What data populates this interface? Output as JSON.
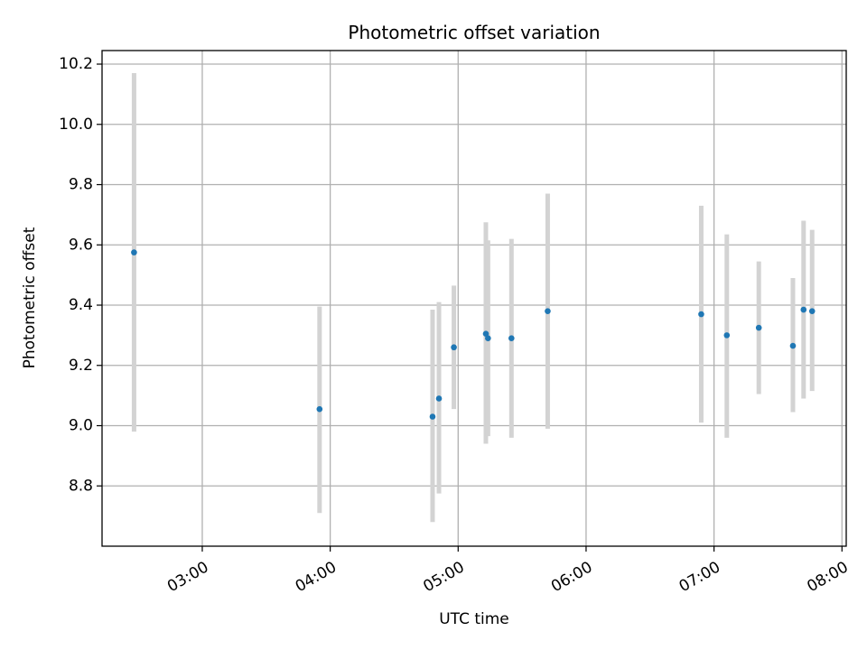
{
  "chart_data": {
    "type": "scatter",
    "title": "Photometric offset variation",
    "xlabel": "UTC time",
    "ylabel": "Photometric offset",
    "x_ticks": [
      "03:00",
      "04:00",
      "05:00",
      "06:00",
      "07:00",
      "08:00"
    ],
    "y_ticks": [
      "8.8",
      "9.0",
      "9.2",
      "9.4",
      "9.6",
      "9.8",
      "10.0",
      "10.2"
    ],
    "xlim": [
      "02:13",
      "08:02"
    ],
    "ylim": [
      8.6,
      10.245
    ],
    "grid": true,
    "colors": {
      "point": "#1f77b4",
      "errorbar": "#d3d3d3",
      "grid": "#b0b0b0"
    },
    "points": [
      {
        "time": "02:28",
        "y": 9.575,
        "y_low": 8.98,
        "y_high": 10.17
      },
      {
        "time": "03:55",
        "y": 9.055,
        "y_low": 8.71,
        "y_high": 9.395
      },
      {
        "time": "04:48",
        "y": 9.03,
        "y_low": 8.68,
        "y_high": 9.385
      },
      {
        "time": "04:51",
        "y": 9.09,
        "y_low": 8.775,
        "y_high": 9.41
      },
      {
        "time": "04:58",
        "y": 9.26,
        "y_low": 9.055,
        "y_high": 9.465
      },
      {
        "time": "05:13",
        "y": 9.305,
        "y_low": 8.94,
        "y_high": 9.675
      },
      {
        "time": "05:14",
        "y": 9.29,
        "y_low": 8.965,
        "y_high": 9.615
      },
      {
        "time": "05:25",
        "y": 9.29,
        "y_low": 8.96,
        "y_high": 9.62
      },
      {
        "time": "05:42",
        "y": 9.38,
        "y_low": 8.99,
        "y_high": 9.77
      },
      {
        "time": "06:54",
        "y": 9.37,
        "y_low": 9.01,
        "y_high": 9.73
      },
      {
        "time": "07:06",
        "y": 9.3,
        "y_low": 8.96,
        "y_high": 9.635
      },
      {
        "time": "07:21",
        "y": 9.325,
        "y_low": 9.105,
        "y_high": 9.545
      },
      {
        "time": "07:37",
        "y": 9.265,
        "y_low": 9.045,
        "y_high": 9.49
      },
      {
        "time": "07:42",
        "y": 9.385,
        "y_low": 9.09,
        "y_high": 9.68
      },
      {
        "time": "07:46",
        "y": 9.38,
        "y_low": 9.115,
        "y_high": 9.65
      }
    ]
  }
}
